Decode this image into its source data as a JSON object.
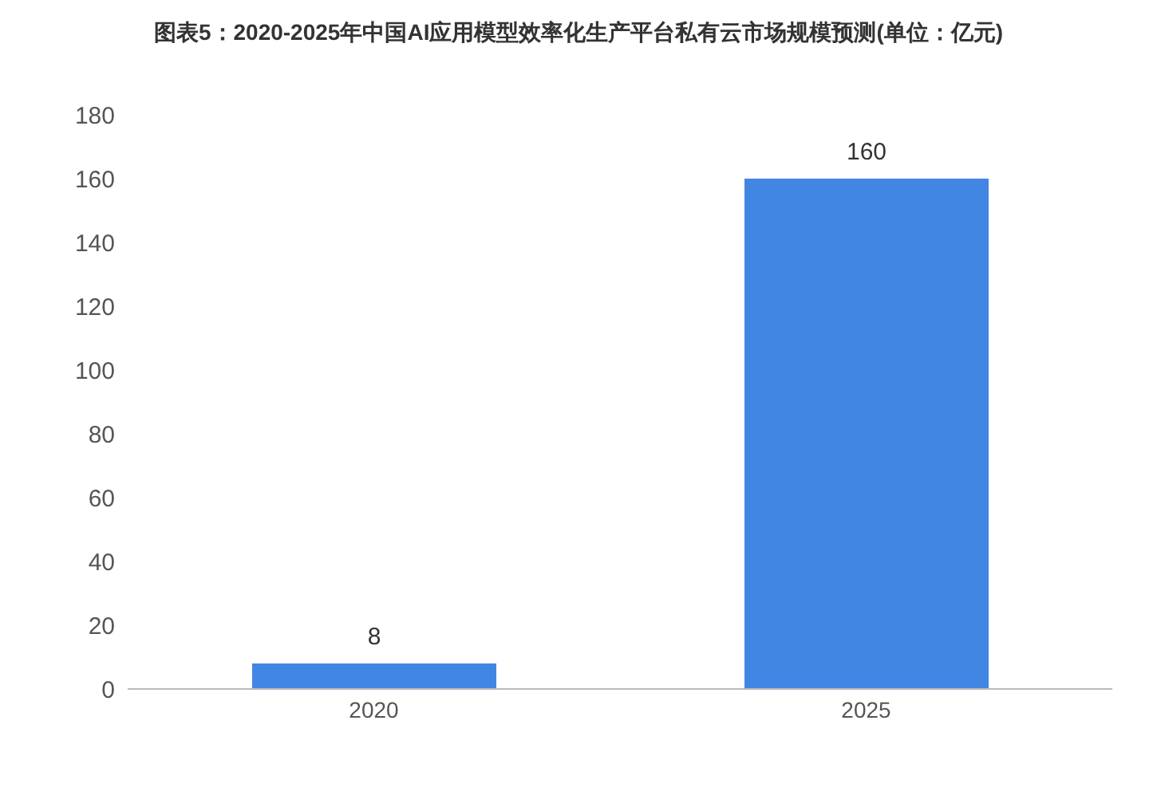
{
  "chart_data": {
    "type": "bar",
    "title": "图表5：2020-2025年中国AI应用模型效率化生产平台私有云市场规模预测(单位：亿元)",
    "categories": [
      "2020",
      "2025"
    ],
    "values": [
      8,
      160
    ],
    "color": "#4286e3",
    "ylim": [
      0,
      180
    ],
    "yticks": [
      0,
      20,
      40,
      60,
      80,
      100,
      120,
      140,
      160,
      180
    ],
    "grid": false,
    "data_labels": true
  }
}
